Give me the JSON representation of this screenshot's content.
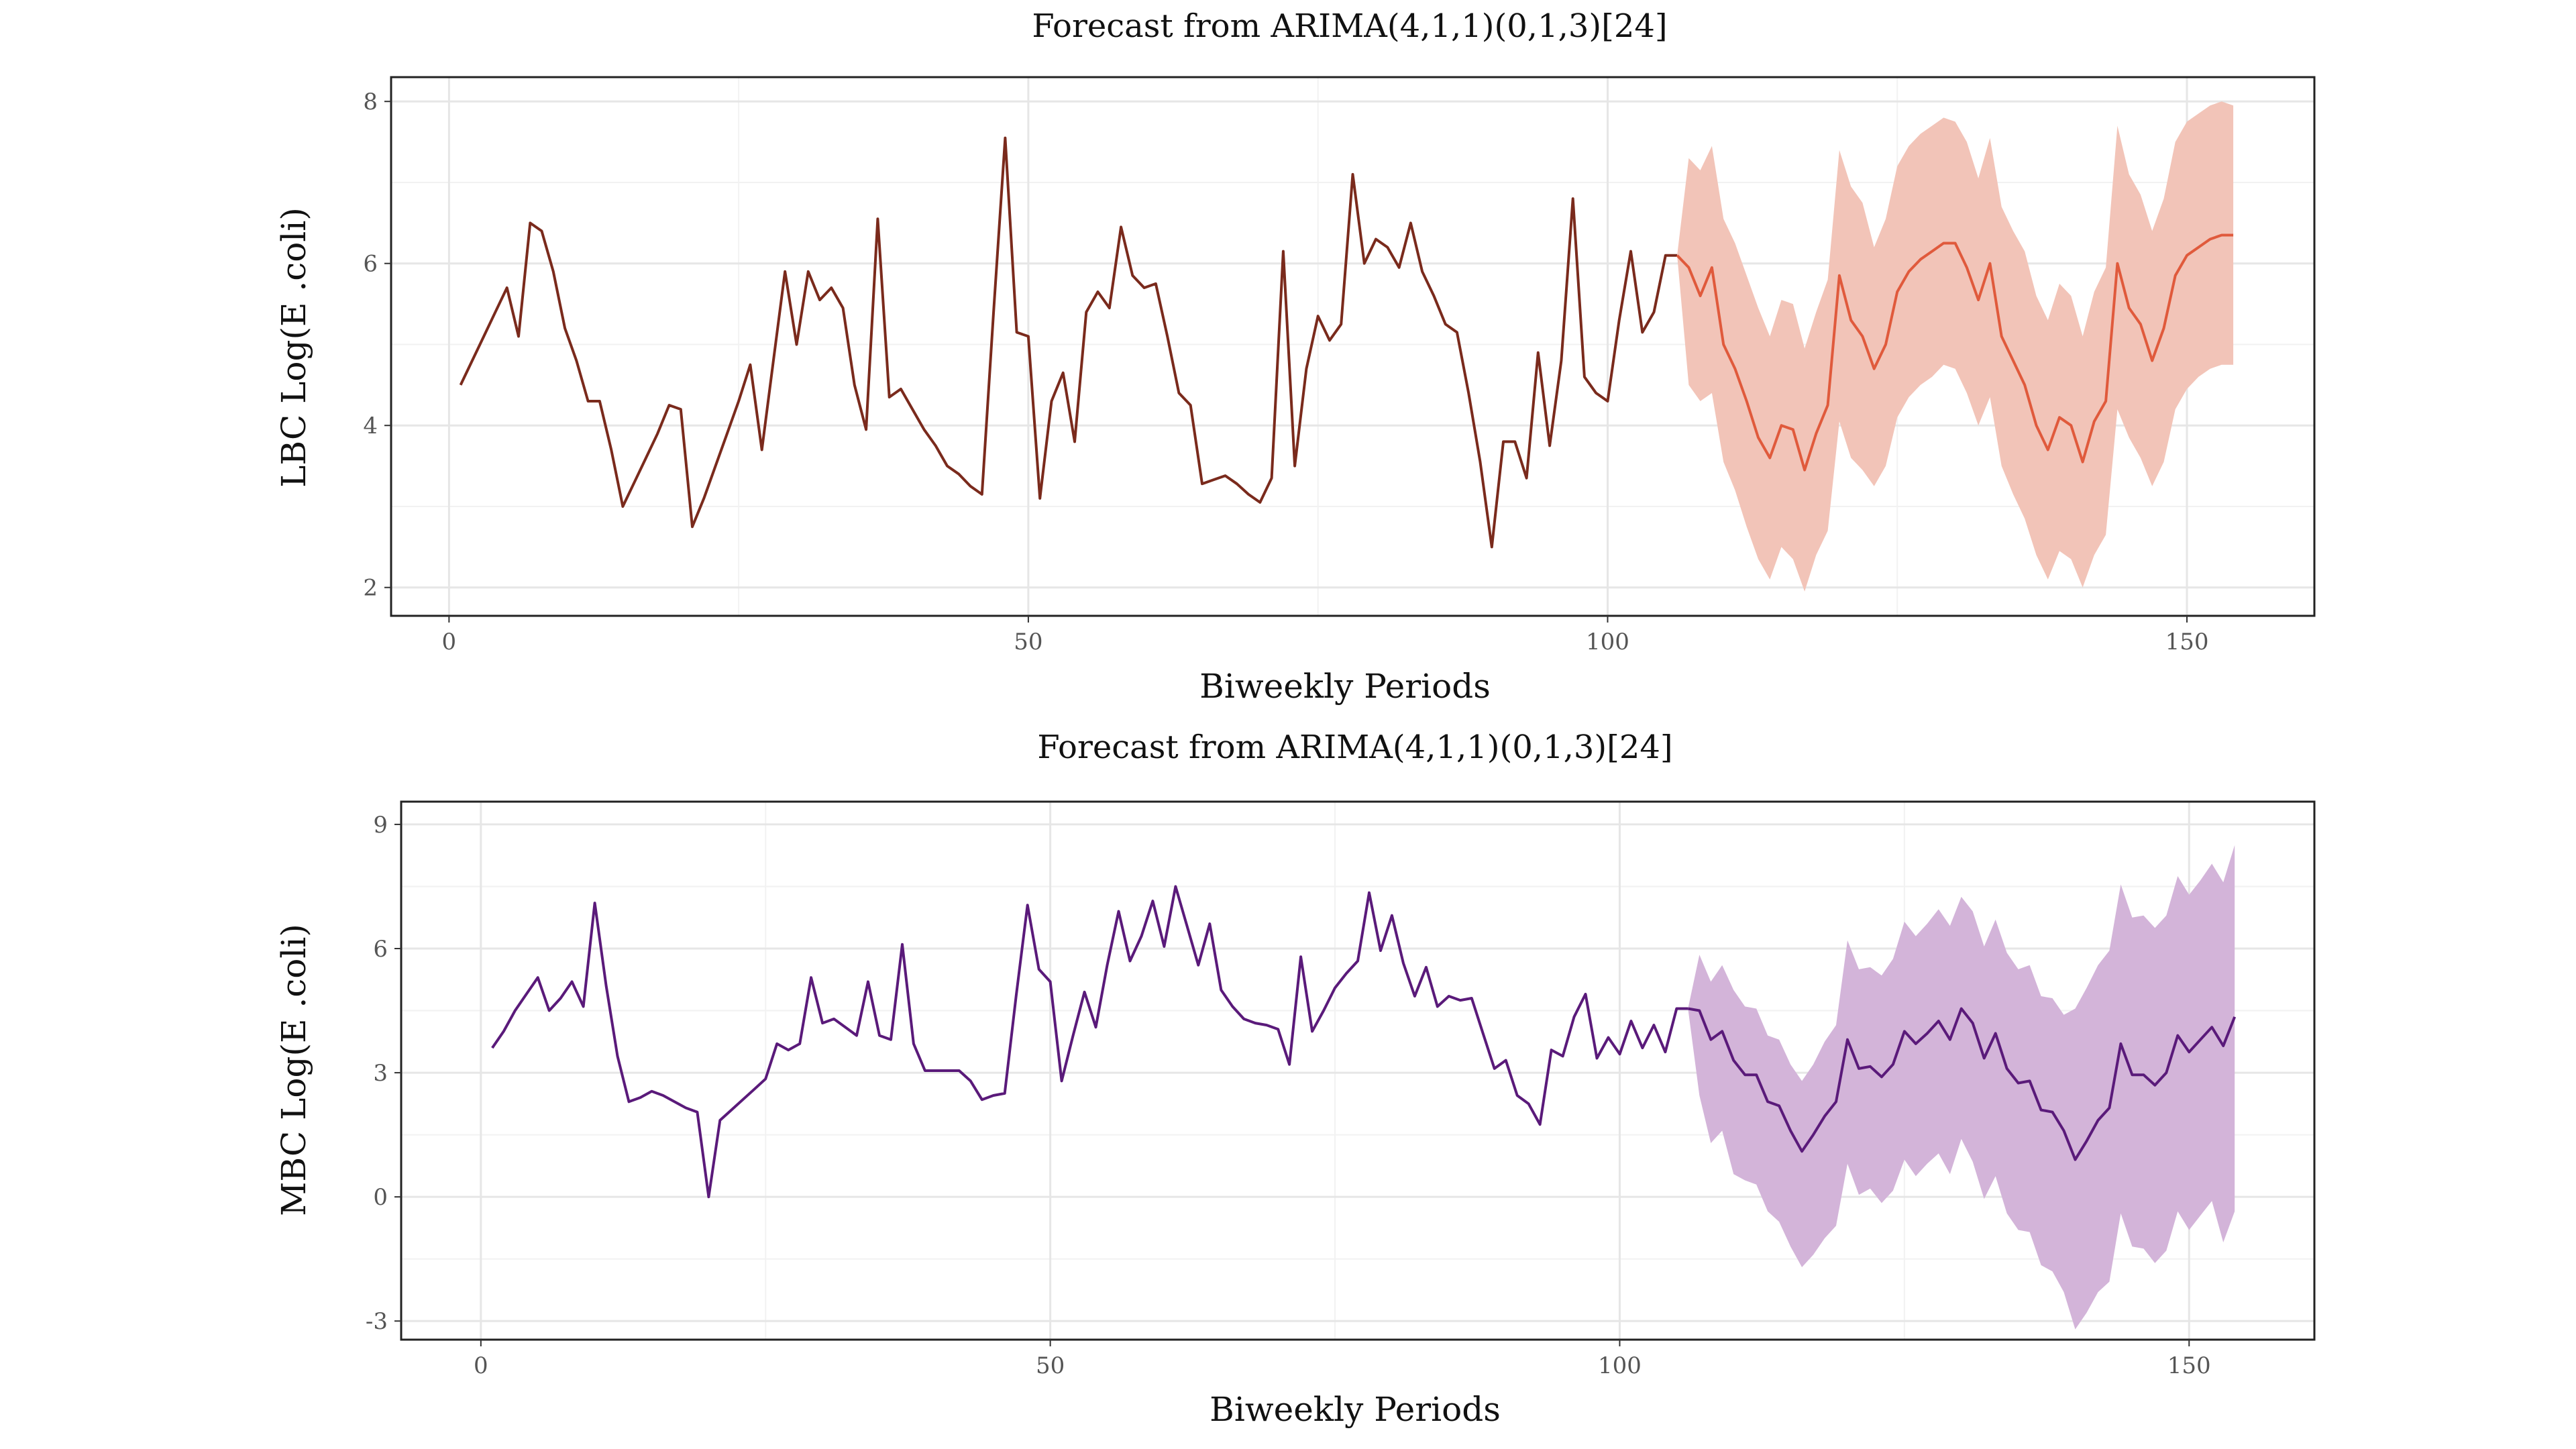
{
  "chart_data": [
    {
      "type": "line",
      "title": "Forecast from ARIMA(4,1,1)(0,1,3)[24]",
      "xlabel": "Biweekly Periods",
      "ylabel": "LBC Log(E .coli)",
      "xlim": [
        -5,
        161
      ],
      "ylim": [
        1.65,
        8.3
      ],
      "xticks": [
        0,
        50,
        100,
        150
      ],
      "yticks": [
        2,
        4,
        6,
        8
      ],
      "grid": true,
      "colors": {
        "history": "#7a2a1c",
        "forecast": "#e05a3c",
        "band": "#f2c4b8"
      },
      "history": {
        "x": [
          1,
          2,
          3,
          4,
          5,
          6,
          7,
          8,
          9,
          10,
          11,
          12,
          13,
          14,
          15,
          16,
          17,
          18,
          19,
          20,
          21,
          22,
          23,
          24,
          25,
          26,
          27,
          28,
          29,
          30,
          31,
          32,
          33,
          34,
          35,
          36,
          37,
          38,
          39,
          40,
          41,
          42,
          43,
          44,
          45,
          46,
          47,
          48,
          49,
          50,
          51,
          52,
          53,
          54,
          55,
          56,
          57,
          58,
          59,
          60,
          61,
          62,
          63,
          64,
          65,
          66,
          67,
          68,
          69,
          70,
          71,
          72,
          73,
          74,
          75,
          76,
          77,
          78,
          79,
          80,
          81,
          82,
          83,
          84,
          85,
          86,
          87,
          88,
          89,
          90,
          91,
          92,
          93,
          94,
          95,
          96,
          97,
          98,
          99,
          100,
          101,
          102,
          103,
          104,
          105,
          106
        ],
        "y": [
          4.5,
          4.8,
          5.1,
          5.4,
          5.7,
          5.1,
          6.5,
          6.4,
          5.9,
          5.2,
          4.8,
          4.3,
          4.3,
          3.7,
          3.0,
          3.3,
          3.6,
          3.9,
          4.25,
          4.2,
          2.75,
          3.1,
          3.5,
          3.9,
          4.3,
          4.75,
          3.7,
          4.8,
          5.9,
          5.0,
          5.9,
          5.55,
          5.7,
          5.45,
          4.5,
          3.95,
          6.55,
          4.35,
          4.45,
          4.2,
          3.95,
          3.75,
          3.5,
          3.4,
          3.25,
          3.15,
          5.4,
          7.55,
          5.15,
          5.1,
          3.1,
          4.3,
          4.65,
          3.8,
          5.4,
          5.65,
          5.45,
          6.45,
          5.85,
          5.7,
          5.75,
          5.1,
          4.4,
          4.25,
          3.28,
          3.33,
          3.38,
          3.28,
          3.15,
          3.05,
          3.35,
          6.15,
          3.5,
          4.7,
          5.35,
          5.05,
          5.25,
          7.1,
          6.0,
          6.3,
          6.2,
          5.95,
          6.5,
          5.9,
          5.6,
          5.25,
          5.15,
          4.4,
          3.55,
          2.5,
          3.8,
          3.8,
          3.35,
          4.9,
          3.75,
          4.8,
          6.8,
          4.6,
          4.4,
          4.3,
          5.3,
          6.15,
          5.15,
          5.4,
          6.1,
          6.1
        ]
      },
      "forecast": {
        "x": [
          106,
          107,
          108,
          109,
          110,
          111,
          112,
          113,
          114,
          115,
          116,
          117,
          118,
          119,
          120,
          121,
          122,
          123,
          124,
          125,
          126,
          127,
          128,
          129,
          130,
          131,
          132,
          133,
          134,
          135,
          136,
          137,
          138,
          139,
          140,
          141,
          142,
          143,
          144,
          145,
          146,
          147,
          148,
          149,
          150,
          151,
          152,
          153,
          154
        ],
        "mean": [
          6.1,
          5.95,
          5.6,
          5.95,
          5.0,
          4.7,
          4.3,
          3.85,
          3.6,
          4.0,
          3.95,
          3.45,
          3.9,
          4.25,
          5.85,
          5.3,
          5.1,
          4.7,
          5.0,
          5.65,
          5.9,
          6.05,
          6.15,
          6.25,
          6.25,
          5.95,
          5.55,
          6.0,
          5.1,
          4.8,
          4.5,
          4.0,
          3.7,
          4.1,
          4.0,
          3.55,
          4.05,
          4.3,
          6.0,
          5.45,
          5.25,
          4.8,
          5.2,
          5.85,
          6.1,
          6.2,
          6.3,
          6.35,
          6.35
        ],
        "lower": [
          6.1,
          4.5,
          4.3,
          4.4,
          3.55,
          3.2,
          2.75,
          2.35,
          2.1,
          2.5,
          2.35,
          1.95,
          2.4,
          2.7,
          4.05,
          3.6,
          3.45,
          3.25,
          3.5,
          4.1,
          4.35,
          4.5,
          4.6,
          4.75,
          4.7,
          4.4,
          4.0,
          4.35,
          3.5,
          3.15,
          2.85,
          2.4,
          2.1,
          2.45,
          2.35,
          2.0,
          2.4,
          2.65,
          4.2,
          3.85,
          3.6,
          3.25,
          3.55,
          4.2,
          4.45,
          4.6,
          4.7,
          4.75,
          4.75
        ],
        "upper": [
          6.1,
          7.3,
          7.15,
          7.45,
          6.55,
          6.25,
          5.85,
          5.45,
          5.1,
          5.55,
          5.5,
          4.95,
          5.4,
          5.8,
          7.4,
          6.95,
          6.75,
          6.2,
          6.55,
          7.2,
          7.45,
          7.6,
          7.7,
          7.8,
          7.75,
          7.5,
          7.05,
          7.55,
          6.7,
          6.4,
          6.15,
          5.6,
          5.3,
          5.75,
          5.6,
          5.1,
          5.65,
          5.95,
          7.7,
          7.1,
          6.85,
          6.4,
          6.8,
          7.5,
          7.75,
          7.85,
          7.95,
          8.0,
          7.95
        ]
      }
    },
    {
      "type": "line",
      "title": "Forecast from ARIMA(4,1,1)(0,1,3)[24]",
      "xlabel": "Biweekly Periods",
      "ylabel": "MBC Log(E .coli)",
      "xlim": [
        -7,
        161
      ],
      "ylim": [
        -3.45,
        9.55
      ],
      "xticks": [
        0,
        50,
        100,
        150
      ],
      "yticks": [
        -3,
        0,
        3,
        6,
        9
      ],
      "grid": true,
      "colors": {
        "history": "#5a1a7a",
        "forecast": "#5a1a7a",
        "band": "#d3b4d9"
      },
      "history": {
        "x": [
          1,
          2,
          3,
          4,
          5,
          6,
          7,
          8,
          9,
          10,
          11,
          12,
          13,
          14,
          15,
          16,
          17,
          18,
          19,
          20,
          21,
          22,
          23,
          24,
          25,
          26,
          27,
          28,
          29,
          30,
          31,
          32,
          33,
          34,
          35,
          36,
          37,
          38,
          39,
          40,
          41,
          42,
          43,
          44,
          45,
          46,
          47,
          48,
          49,
          50,
          51,
          52,
          53,
          54,
          55,
          56,
          57,
          58,
          59,
          60,
          61,
          62,
          63,
          64,
          65,
          66,
          67,
          68,
          69,
          70,
          71,
          72,
          73,
          74,
          75,
          76,
          77,
          78,
          79,
          80,
          81,
          82,
          83,
          84,
          85,
          86,
          87,
          88,
          89,
          90,
          91,
          92,
          93,
          94,
          95,
          96,
          97,
          98,
          99,
          100,
          101,
          102,
          103,
          104,
          105,
          106
        ],
        "y": [
          3.6,
          4.0,
          4.5,
          4.9,
          5.3,
          4.5,
          4.8,
          5.2,
          4.6,
          7.1,
          5.1,
          3.4,
          2.3,
          2.4,
          2.55,
          2.45,
          2.3,
          2.15,
          2.05,
          0.0,
          1.85,
          2.1,
          2.35,
          2.6,
          2.85,
          3.7,
          3.55,
          3.7,
          5.3,
          4.2,
          4.3,
          4.1,
          3.9,
          5.2,
          3.9,
          3.8,
          6.1,
          3.7,
          3.05,
          3.05,
          3.05,
          3.05,
          2.8,
          2.35,
          2.45,
          2.5,
          4.85,
          7.05,
          5.5,
          5.2,
          2.8,
          3.9,
          4.95,
          4.1,
          5.6,
          6.9,
          5.7,
          6.3,
          7.15,
          6.05,
          7.5,
          6.55,
          5.6,
          6.6,
          5.0,
          4.6,
          4.3,
          4.2,
          4.15,
          4.05,
          3.2,
          5.8,
          4.0,
          4.5,
          5.05,
          5.4,
          5.7,
          7.35,
          5.95,
          6.8,
          5.65,
          4.85,
          5.55,
          4.6,
          4.85,
          4.75,
          4.8,
          3.95,
          3.1,
          3.3,
          2.45,
          2.25,
          1.75,
          3.55,
          3.4,
          4.35,
          4.9,
          3.35,
          3.85,
          3.45,
          4.25,
          3.6,
          4.15,
          3.5,
          4.55,
          4.55
        ]
      },
      "forecast": {
        "x": [
          106,
          107,
          108,
          109,
          110,
          111,
          112,
          113,
          114,
          115,
          116,
          117,
          118,
          119,
          120,
          121,
          122,
          123,
          124,
          125,
          126,
          127,
          128,
          129,
          130,
          131,
          132,
          133,
          134,
          135,
          136,
          137,
          138,
          139,
          140,
          141,
          142,
          143,
          144,
          145,
          146,
          147,
          148,
          149,
          150,
          151,
          152,
          153,
          154
        ],
        "mean": [
          4.55,
          4.5,
          3.8,
          4.0,
          3.3,
          2.95,
          2.95,
          2.3,
          2.2,
          1.6,
          1.1,
          1.5,
          1.95,
          2.3,
          3.8,
          3.1,
          3.15,
          2.9,
          3.2,
          4.0,
          3.7,
          3.95,
          4.25,
          3.8,
          4.55,
          4.2,
          3.35,
          3.95,
          3.1,
          2.75,
          2.8,
          2.1,
          2.05,
          1.6,
          0.9,
          1.35,
          1.85,
          2.15,
          3.7,
          2.95,
          2.95,
          2.7,
          3.0,
          3.9,
          3.5,
          3.8,
          4.1,
          3.65,
          4.35
        ],
        "lower": [
          4.55,
          2.45,
          1.3,
          1.6,
          0.55,
          0.4,
          0.3,
          -0.35,
          -0.6,
          -1.2,
          -1.7,
          -1.4,
          -1.0,
          -0.7,
          0.8,
          0.05,
          0.2,
          -0.15,
          0.15,
          0.9,
          0.5,
          0.8,
          1.05,
          0.55,
          1.4,
          0.85,
          -0.05,
          0.5,
          -0.4,
          -0.8,
          -0.85,
          -1.65,
          -1.8,
          -2.3,
          -3.2,
          -2.8,
          -2.3,
          -2.05,
          -0.4,
          -1.2,
          -1.25,
          -1.6,
          -1.3,
          -0.35,
          -0.8,
          -0.45,
          -0.1,
          -1.1,
          -0.35
        ],
        "upper": [
          4.55,
          5.85,
          5.2,
          5.6,
          5.0,
          4.6,
          4.55,
          3.9,
          3.8,
          3.2,
          2.8,
          3.2,
          3.75,
          4.15,
          6.2,
          5.5,
          5.55,
          5.35,
          5.75,
          6.65,
          6.3,
          6.6,
          6.95,
          6.55,
          7.25,
          6.9,
          6.05,
          6.7,
          5.9,
          5.5,
          5.6,
          4.85,
          4.8,
          4.4,
          4.55,
          5.05,
          5.6,
          5.95,
          7.55,
          6.75,
          6.8,
          6.5,
          6.8,
          7.75,
          7.3,
          7.65,
          8.05,
          7.6,
          8.5
        ]
      }
    }
  ]
}
